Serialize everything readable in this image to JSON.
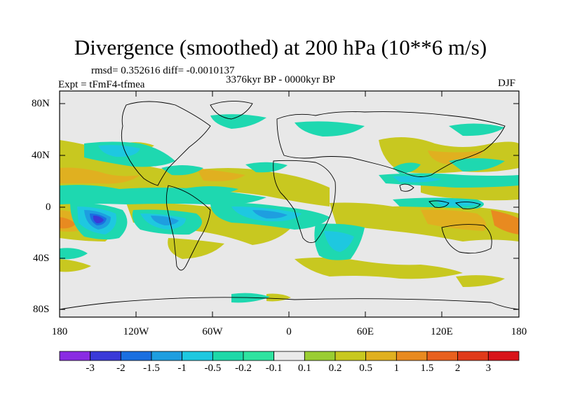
{
  "title": "Divergence (smoothed) at 200 hPa (10**6 m/s)",
  "stats": "rmsd= 0.352616 diff= -0.0010137",
  "period": "3376kyr BP - 0000kyr BP",
  "experiment": "Expt = tFmF4-tfmea",
  "season": "DJF",
  "lat_labels": [
    "80N",
    "40N",
    "0",
    "40S",
    "80S"
  ],
  "lon_labels": [
    "180",
    "120W",
    "60W",
    "0",
    "60E",
    "120E",
    "180"
  ],
  "colorbar": {
    "labels": [
      "-3",
      "-2",
      "-1.5",
      "-1",
      "-0.5",
      "-0.2",
      "-0.1",
      "0.1",
      "0.2",
      "0.5",
      "1",
      "1.5",
      "2",
      "3"
    ],
    "colors": [
      "#8a2be2",
      "#3a3ad8",
      "#1a6fe0",
      "#1e9ee0",
      "#1ec8e0",
      "#1ed8a8",
      "#2fe3a0",
      "#eaeaea",
      "#9acd32",
      "#c8c820",
      "#e0b020",
      "#e88a20",
      "#e8601e",
      "#e03a1a",
      "#d8141a"
    ]
  },
  "map_colors": {
    "ocean_neutral": "#e8e8e8",
    "neg_light": "#1ed8b0",
    "neg_mid": "#1ec8e0",
    "neg_strong": "#1e9ee0",
    "neg_deep": "#1a6fe0",
    "neg_core": "#3a3ad8",
    "pos_light": "#9acd32",
    "pos_mid": "#c8c820",
    "pos_strong": "#e0b020",
    "pos_deep": "#e88a20",
    "pos_core": "#e8601e"
  }
}
